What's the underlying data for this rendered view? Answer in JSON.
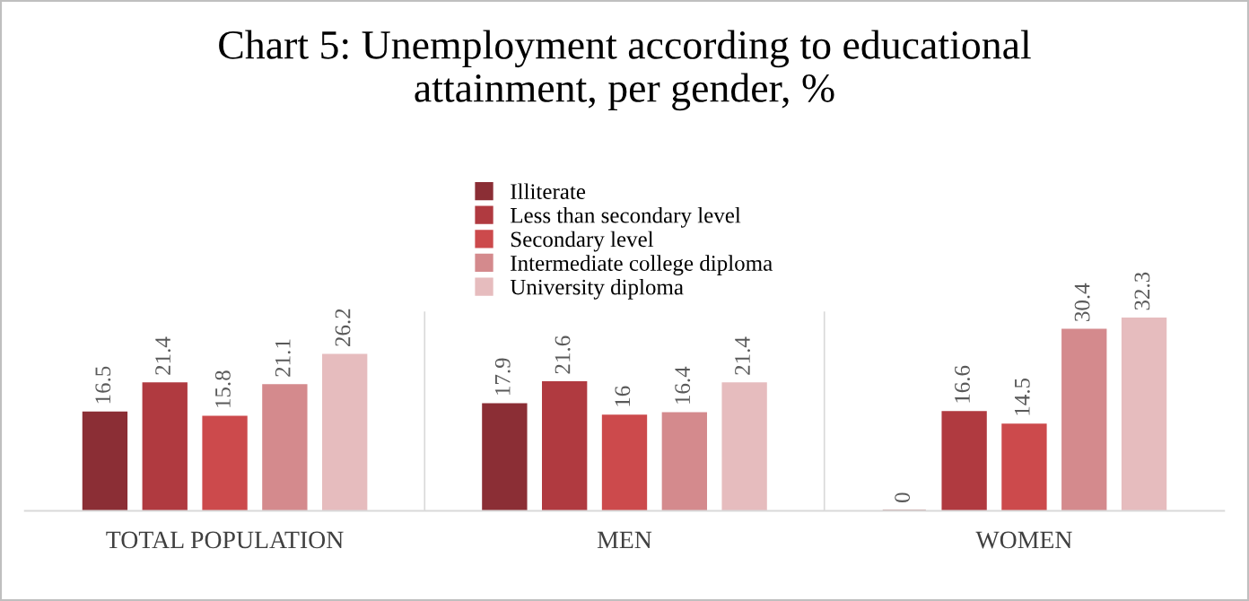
{
  "chart_data": {
    "type": "bar",
    "title": "Chart 5: Unemployment according to educational\nattainment, per gender, %",
    "categories": [
      "TOTAL POPULATION",
      "MEN",
      "WOMEN"
    ],
    "series": [
      {
        "name": "Illiterate",
        "color": "#8b2e35",
        "values": [
          16.5,
          17.9,
          0
        ]
      },
      {
        "name": "Less than secondary level",
        "color": "#b03a40",
        "values": [
          21.4,
          21.6,
          16.6
        ]
      },
      {
        "name": "Secondary level",
        "color": "#cc4a4c",
        "values": [
          15.8,
          16,
          14.5
        ]
      },
      {
        "name": "Intermediate college diploma",
        "color": "#d48a8d",
        "values": [
          21.1,
          16.4,
          30.4
        ]
      },
      {
        "name": "University diploma",
        "color": "#e6bcbe",
        "values": [
          26.2,
          21.4,
          32.3
        ]
      }
    ],
    "data_labels": true,
    "legend": "top",
    "grid": false
  }
}
